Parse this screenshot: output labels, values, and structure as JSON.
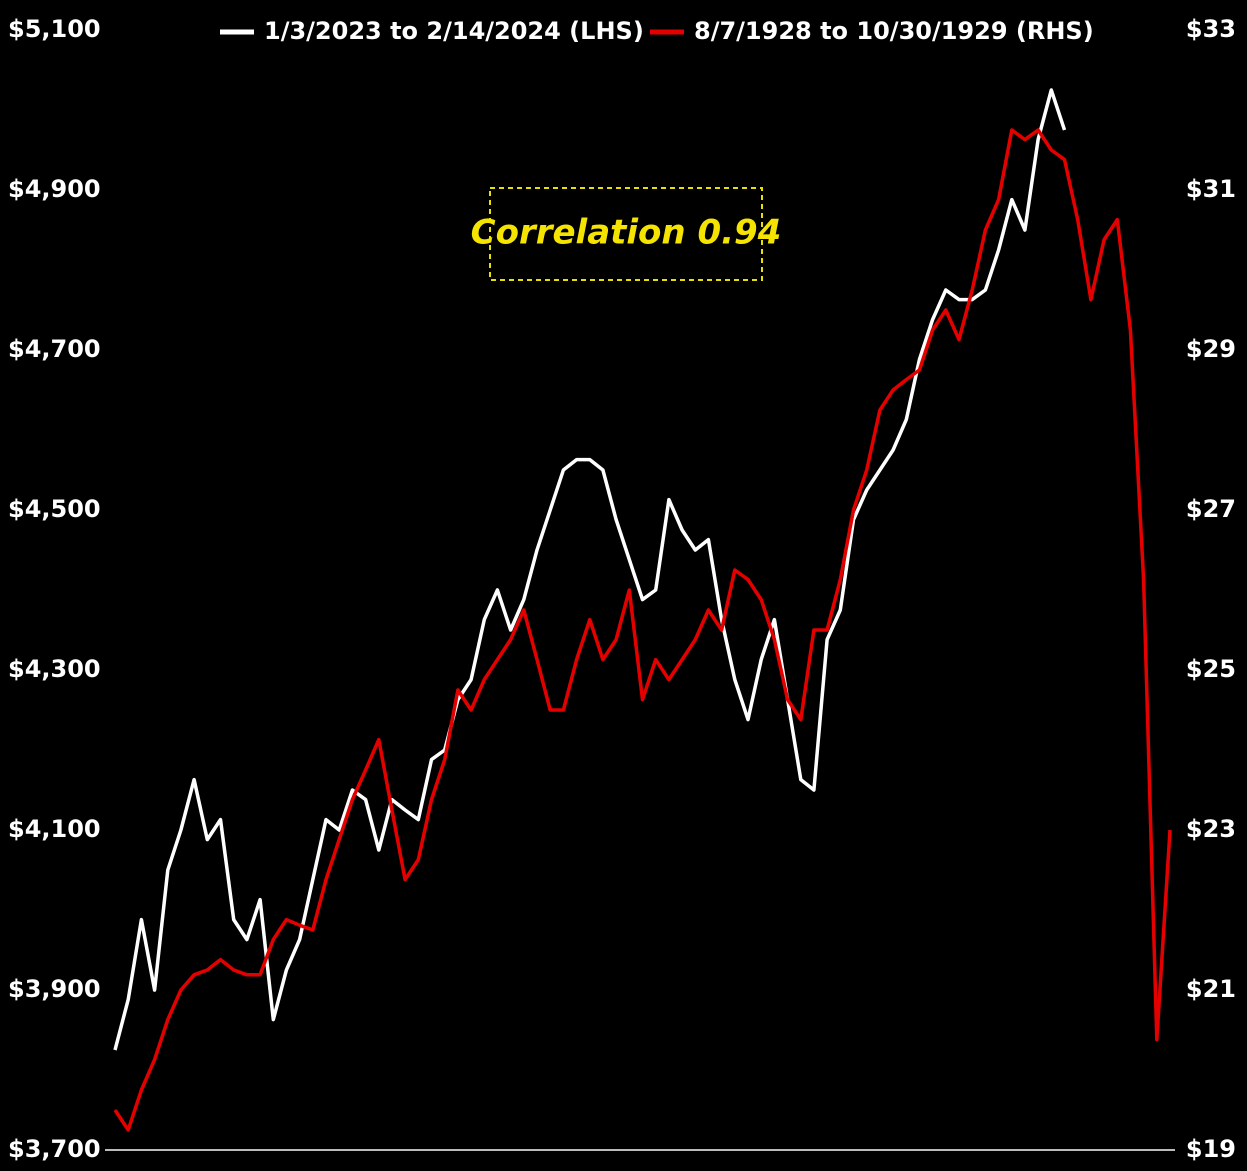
{
  "chart_data": {
    "type": "line",
    "annotation": "Correlation 0.94",
    "series": [
      {
        "name": "1/3/2023 to 2/14/2024 (LHS)",
        "color": "#ffffff",
        "axis": "y",
        "values": [
          3825,
          3888,
          3988,
          3900,
          4050,
          4100,
          4163,
          4088,
          4113,
          3988,
          3963,
          4013,
          3863,
          3925,
          3963,
          4038,
          4113,
          4100,
          4150,
          4138,
          4075,
          4138,
          4125,
          4113,
          4188,
          4200,
          4263,
          4288,
          4363,
          4400,
          4350,
          4388,
          4450,
          4500,
          4550,
          4563,
          4563,
          4550,
          4488,
          4438,
          4388,
          4400,
          4513,
          4475,
          4450,
          4463,
          4363,
          4288,
          4238,
          4313,
          4363,
          4263,
          4163,
          4150,
          4338,
          4375,
          4488,
          4525,
          4550,
          4575,
          4613,
          4688,
          4738,
          4775,
          4763,
          4763,
          4775,
          4825,
          4888,
          4850,
          4963,
          5025,
          4975,
          null,
          null,
          null,
          null,
          null,
          null,
          null,
          null
        ]
      },
      {
        "name": "8/7/1928 to 10/30/1929 (RHS)",
        "color": "#e50000",
        "axis": "y2",
        "values": [
          19.5,
          19.25,
          19.75,
          20.13,
          20.63,
          21.0,
          21.19,
          21.25,
          21.38,
          21.25,
          21.19,
          21.19,
          21.63,
          21.88,
          21.81,
          21.75,
          22.38,
          22.88,
          23.38,
          23.75,
          24.13,
          23.25,
          22.38,
          22.63,
          23.38,
          23.88,
          24.75,
          24.5,
          24.88,
          25.13,
          25.38,
          25.75,
          25.13,
          24.5,
          24.5,
          25.13,
          25.63,
          25.13,
          25.38,
          26.0,
          24.63,
          25.13,
          24.88,
          25.13,
          25.38,
          25.75,
          25.5,
          26.25,
          26.13,
          25.88,
          25.38,
          24.63,
          24.38,
          25.5,
          25.5,
          26.13,
          27.0,
          27.5,
          28.25,
          28.5,
          28.63,
          28.75,
          29.25,
          29.5,
          29.13,
          29.75,
          30.5,
          30.88,
          31.75,
          31.63,
          31.75,
          31.5,
          31.38,
          30.63,
          29.63,
          30.38,
          30.63,
          29.25,
          26.13,
          20.38,
          23.0
        ]
      }
    ],
    "ylim": [
      3700,
      5100
    ],
    "yticks": [
      {
        "value": 3700,
        "label": "$3,700"
      },
      {
        "value": 3900,
        "label": "$3,900"
      },
      {
        "value": 4100,
        "label": "$4,100"
      },
      {
        "value": 4300,
        "label": "$4,300"
      },
      {
        "value": 4500,
        "label": "$4,500"
      },
      {
        "value": 4700,
        "label": "$4,700"
      },
      {
        "value": 4900,
        "label": "$4,900"
      },
      {
        "value": 5100,
        "label": "$5,100"
      }
    ],
    "y2lim": [
      19,
      33
    ],
    "y2ticks": [
      {
        "value": 19,
        "label": "$19"
      },
      {
        "value": 21,
        "label": "$21"
      },
      {
        "value": 23,
        "label": "$23"
      },
      {
        "value": 25,
        "label": "$25"
      },
      {
        "value": 27,
        "label": "$27"
      },
      {
        "value": 29,
        "label": "$29"
      },
      {
        "value": 31,
        "label": "$31"
      },
      {
        "value": 33,
        "label": "$33"
      }
    ],
    "grid": false,
    "legend": "top"
  }
}
